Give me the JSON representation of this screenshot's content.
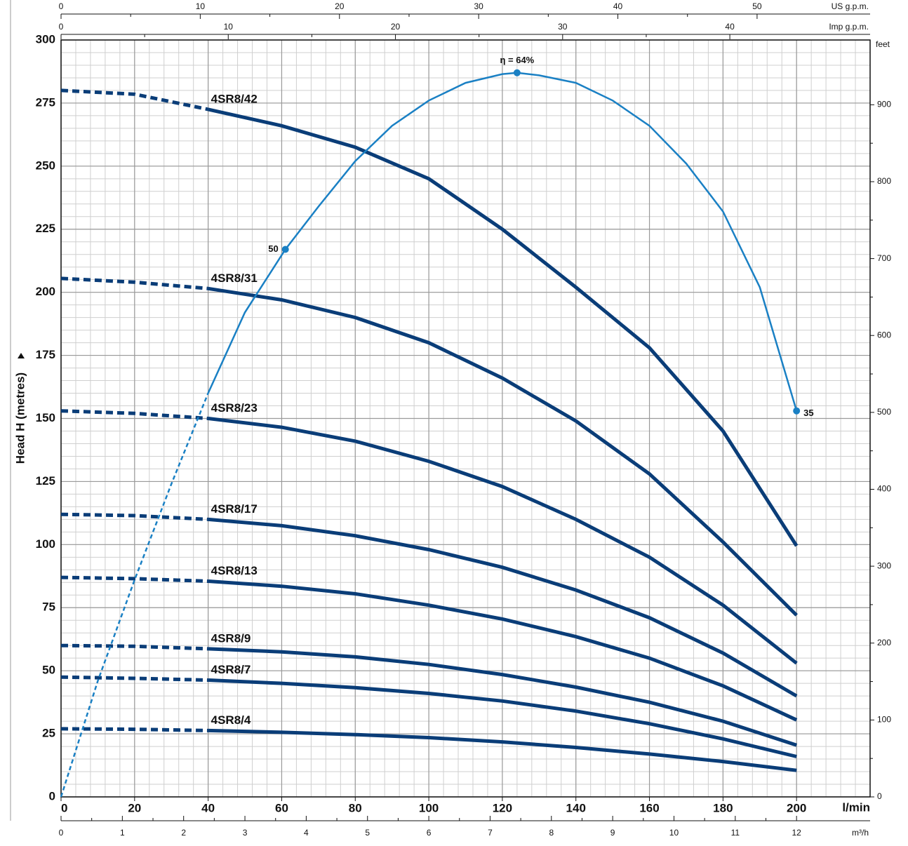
{
  "chart_data": {
    "type": "line",
    "xlabel": "l/min",
    "ylabel": "Head H (metres)",
    "y2label": "feet",
    "xlim": [
      0,
      220
    ],
    "xticks": [
      0,
      20,
      40,
      60,
      80,
      100,
      120,
      140,
      160,
      180,
      200
    ],
    "ylim": [
      0,
      300
    ],
    "yticks": [
      0,
      25,
      50,
      75,
      100,
      125,
      150,
      175,
      200,
      225,
      250,
      275,
      300
    ],
    "y2lim": [
      0,
      984.25
    ],
    "y2ticks": [
      0,
      100,
      200,
      300,
      400,
      500,
      600,
      700,
      800,
      900
    ],
    "secondary_x_axes": [
      {
        "position": "top",
        "label": "US g.p.m.",
        "lim": [
          0,
          58.12
        ],
        "ticks": [
          0,
          10,
          20,
          30,
          40,
          50
        ]
      },
      {
        "position": "top",
        "label": "Imp g.p.m.",
        "lim": [
          0,
          48.39
        ],
        "ticks": [
          0,
          10,
          20,
          30,
          40
        ]
      },
      {
        "position": "bottom",
        "label": "m³/h",
        "lim": [
          0,
          13.2
        ],
        "ticks": [
          0,
          1,
          2,
          3,
          4,
          5,
          6,
          7,
          8,
          9,
          10,
          11,
          12
        ]
      }
    ],
    "grid": true,
    "dashed_below_x": 40,
    "x": [
      0,
      20,
      40,
      60,
      80,
      100,
      120,
      140,
      160,
      180,
      200
    ],
    "series": [
      {
        "name": "4SR8/42",
        "color": "#0a3d78",
        "values": [
          280,
          278.5,
          272.5,
          266,
          257.5,
          245,
          225,
          202,
          178,
          145,
          99.5
        ]
      },
      {
        "name": "4SR8/31",
        "color": "#0a3d78",
        "values": [
          205.5,
          204,
          201.5,
          197,
          190,
          180,
          166,
          149,
          128,
          101,
          72
        ]
      },
      {
        "name": "4SR8/23",
        "color": "#0a3d78",
        "values": [
          153,
          152,
          150,
          146.5,
          141,
          133,
          123,
          110,
          95,
          76,
          53
        ]
      },
      {
        "name": "4SR8/17",
        "color": "#0a3d78",
        "values": [
          112,
          111.5,
          110,
          107.5,
          103.5,
          98,
          91,
          82,
          71,
          57,
          40
        ]
      },
      {
        "name": "4SR8/13",
        "color": "#0a3d78",
        "values": [
          87,
          86.5,
          85.5,
          83.5,
          80.5,
          76,
          70.5,
          63.5,
          55,
          44,
          30.5
        ]
      },
      {
        "name": "4SR8/9",
        "color": "#0a3d78",
        "values": [
          60,
          59.7,
          58.7,
          57.5,
          55.5,
          52.5,
          48.5,
          43.5,
          37.5,
          30,
          20.5
        ]
      },
      {
        "name": "4SR8/7",
        "color": "#0a3d78",
        "values": [
          47.5,
          47,
          46.3,
          45,
          43.3,
          41,
          38,
          34,
          29,
          23,
          16
        ]
      },
      {
        "name": "4SR8/4",
        "color": "#0a3d78",
        "values": [
          27,
          26.8,
          26.3,
          25.6,
          24.7,
          23.5,
          21.8,
          19.6,
          17,
          14,
          10.5
        ]
      }
    ],
    "efficiency_curve": {
      "color": "#1a80c4",
      "x": [
        0,
        10,
        20,
        30,
        40,
        50,
        61,
        70,
        80,
        90,
        100,
        110,
        120,
        124,
        130,
        140,
        150,
        160,
        170,
        180,
        190,
        200
      ],
      "values": [
        0,
        46,
        86,
        124,
        160,
        192,
        217,
        234,
        252,
        266,
        276,
        283,
        286.5,
        287,
        286,
        283,
        276,
        266,
        251,
        232,
        202,
        153
      ],
      "annotations": [
        {
          "x": 61,
          "y": 217,
          "text": "50"
        },
        {
          "x": 124,
          "y": 287,
          "text": "η = 64%"
        },
        {
          "x": 200,
          "y": 153,
          "text": "35"
        }
      ]
    }
  }
}
